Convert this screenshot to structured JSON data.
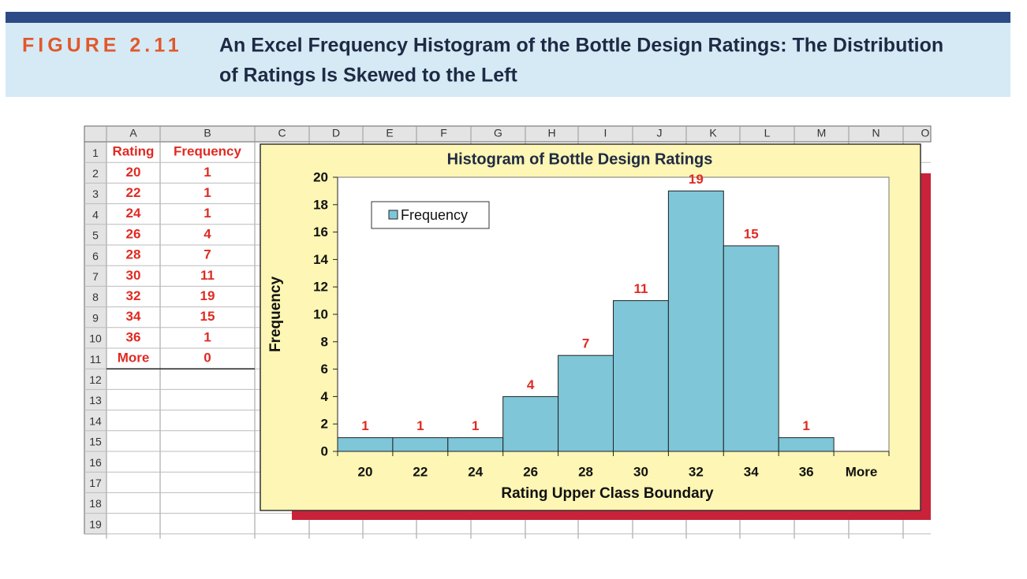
{
  "header": {
    "figure_label": "FIGURE 2.11",
    "title_lines": [
      "An Excel Frequency Histogram of the Bottle Design Ratings: The Distribution",
      "of Ratings Is Skewed to the Left"
    ]
  },
  "spreadsheet": {
    "columns": [
      "A",
      "B",
      "C",
      "D",
      "E",
      "F",
      "G",
      "H",
      "I",
      "J",
      "K",
      "L",
      "M",
      "N",
      "O"
    ],
    "rows": [
      1,
      2,
      3,
      4,
      5,
      6,
      7,
      8,
      9,
      10,
      11,
      12,
      13,
      14,
      15,
      16,
      17,
      18,
      19
    ],
    "table": {
      "header": [
        "Rating",
        "Frequency"
      ],
      "rows": [
        [
          "20",
          1
        ],
        [
          "22",
          1
        ],
        [
          "24",
          1
        ],
        [
          "26",
          4
        ],
        [
          "28",
          7
        ],
        [
          "30",
          11
        ],
        [
          "32",
          19
        ],
        [
          "34",
          15
        ],
        [
          "36",
          1
        ],
        [
          "More",
          0
        ]
      ]
    }
  },
  "chart_data": {
    "type": "bar",
    "title": "Histogram of Bottle Design Ratings",
    "x_label": "Rating Upper Class Boundary",
    "y_label": "Frequency",
    "categories": [
      "20",
      "22",
      "24",
      "26",
      "28",
      "30",
      "32",
      "34",
      "36",
      "More"
    ],
    "series": [
      {
        "name": "Frequency",
        "color": "#7ec6d8",
        "values": [
          1,
          1,
          1,
          4,
          7,
          11,
          19,
          15,
          1,
          0
        ]
      }
    ],
    "ylim": [
      0,
      20
    ],
    "yticks": [
      0,
      2,
      4,
      6,
      8,
      10,
      12,
      14,
      16,
      18,
      20
    ],
    "legend": "upper-left",
    "data_labels": true
  }
}
